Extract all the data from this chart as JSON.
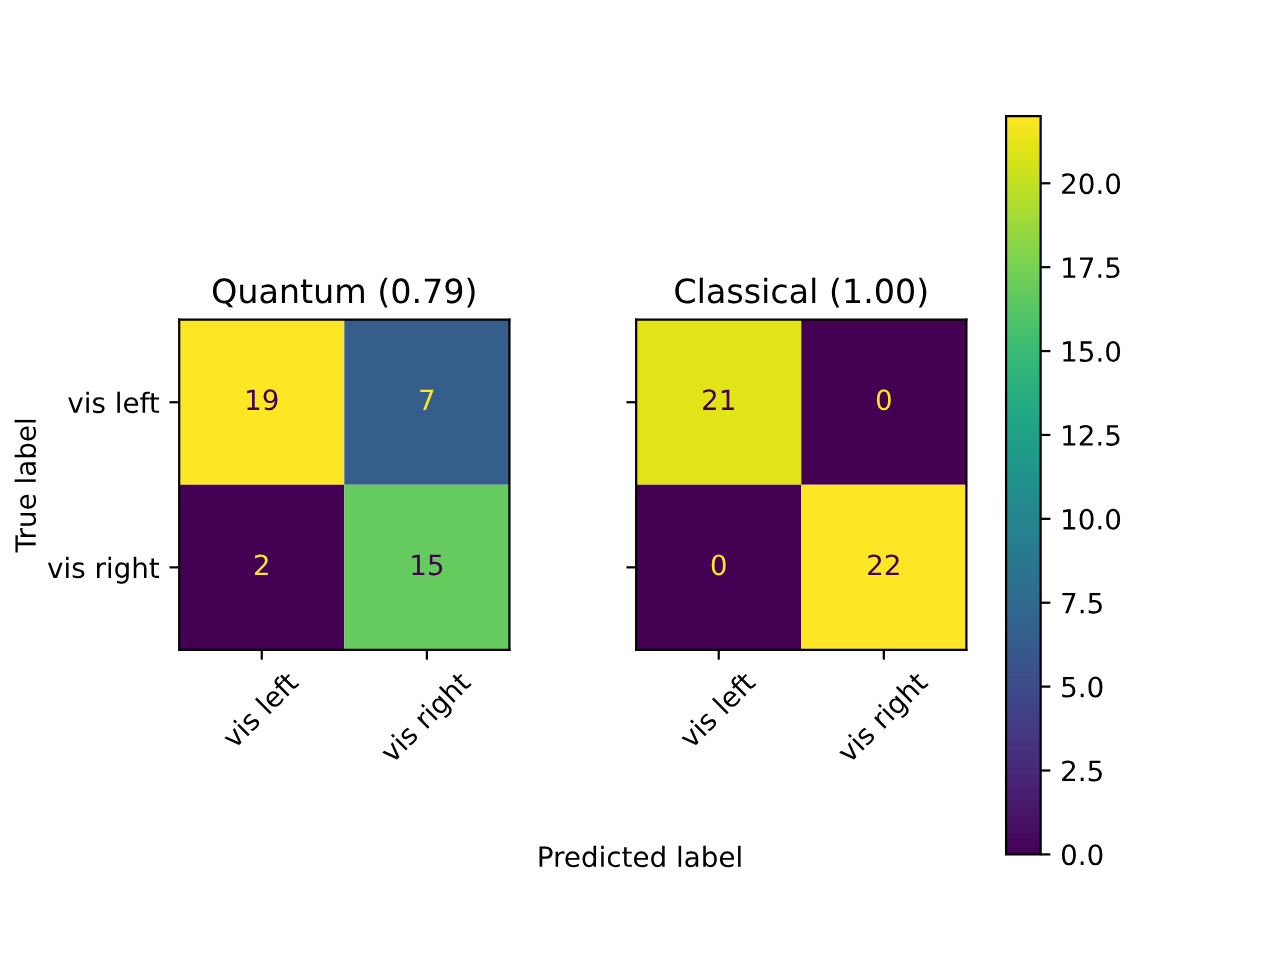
{
  "chart_data": [
    {
      "type": "heatmap",
      "title": "Quantum (0.79)",
      "xlabel": "Predicted label",
      "ylabel": "True label",
      "categories": [
        "vis left",
        "vis right"
      ],
      "y_categories": [
        "vis left",
        "vis right"
      ],
      "cells": [
        [
          19,
          7
        ],
        [
          2,
          15
        ]
      ],
      "data_labels": true
    },
    {
      "type": "heatmap",
      "title": "Classical (1.00)",
      "categories": [
        "vis left",
        "vis right"
      ],
      "y_categories": [
        null,
        null
      ],
      "cells": [
        [
          21,
          0
        ],
        [
          0,
          22
        ]
      ],
      "data_labels": true,
      "tick_labels": "x",
      "clim": [
        0,
        22
      ],
      "cticks": [
        {
          "value": 0,
          "label": "0.0"
        },
        {
          "value": 2.5,
          "label": "2.5"
        },
        {
          "value": 5,
          "label": "5.0"
        },
        {
          "value": 7.5,
          "label": "7.5"
        },
        {
          "value": 10,
          "label": "10.0"
        },
        {
          "value": 12.5,
          "label": "12.5"
        },
        {
          "value": 15,
          "label": "15.0"
        },
        {
          "value": 17.5,
          "label": "17.5"
        },
        {
          "value": 20,
          "label": "20.0"
        }
      ]
    }
  ]
}
